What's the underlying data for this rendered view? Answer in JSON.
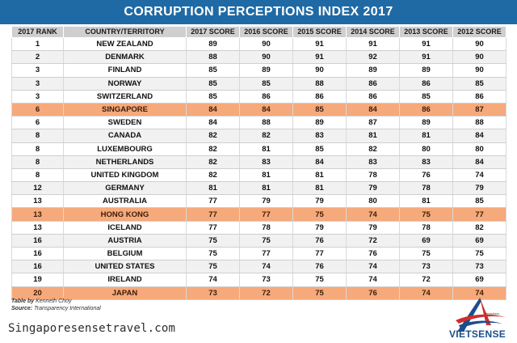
{
  "title": "CORRUPTION PERCEPTIONS INDEX 2017",
  "footer": {
    "table_by_label": "Table by",
    "table_by": "Kenneth Choy",
    "source_label": "Source:",
    "source": "Transparency International"
  },
  "site_url": "Singaporesensetravel.com",
  "logo": {
    "brand": "VIETSENSE",
    "sublabel": "NewsAsia",
    "icon": "stylized-a-logo-icon"
  },
  "colors": {
    "banner": "#1f6aa5",
    "highlight": "#f6a97a",
    "header": "#cfcfcf"
  },
  "chart_data": {
    "type": "table",
    "columns": [
      "2017 RANK",
      "COUNTRY/TERRITORY",
      "2017 SCORE",
      "2016 SCORE",
      "2015 SCORE",
      "2014 SCORE",
      "2013 SCORE",
      "2012 SCORE"
    ],
    "highlighted_rows": [
      "SINGAPORE",
      "HONG KONG",
      "JAPAN"
    ],
    "rows": [
      [
        "1",
        "NEW ZEALAND",
        "89",
        "90",
        "91",
        "91",
        "91",
        "90"
      ],
      [
        "2",
        "DENMARK",
        "88",
        "90",
        "91",
        "92",
        "91",
        "90"
      ],
      [
        "3",
        "FINLAND",
        "85",
        "89",
        "90",
        "89",
        "89",
        "90"
      ],
      [
        "3",
        "NORWAY",
        "85",
        "85",
        "88",
        "86",
        "86",
        "85"
      ],
      [
        "3",
        "SWITZERLAND",
        "85",
        "86",
        "86",
        "86",
        "85",
        "86"
      ],
      [
        "6",
        "SINGAPORE",
        "84",
        "84",
        "85",
        "84",
        "86",
        "87"
      ],
      [
        "6",
        "SWEDEN",
        "84",
        "88",
        "89",
        "87",
        "89",
        "88"
      ],
      [
        "8",
        "CANADA",
        "82",
        "82",
        "83",
        "81",
        "81",
        "84"
      ],
      [
        "8",
        "LUXEMBOURG",
        "82",
        "81",
        "85",
        "82",
        "80",
        "80"
      ],
      [
        "8",
        "NETHERLANDS",
        "82",
        "83",
        "84",
        "83",
        "83",
        "84"
      ],
      [
        "8",
        "UNITED KINGDOM",
        "82",
        "81",
        "81",
        "78",
        "76",
        "74"
      ],
      [
        "12",
        "GERMANY",
        "81",
        "81",
        "81",
        "79",
        "78",
        "79"
      ],
      [
        "13",
        "AUSTRALIA",
        "77",
        "79",
        "79",
        "80",
        "81",
        "85"
      ],
      [
        "13",
        "HONG KONG",
        "77",
        "77",
        "75",
        "74",
        "75",
        "77"
      ],
      [
        "13",
        "ICELAND",
        "77",
        "78",
        "79",
        "79",
        "78",
        "82"
      ],
      [
        "16",
        "AUSTRIA",
        "75",
        "75",
        "76",
        "72",
        "69",
        "69"
      ],
      [
        "16",
        "BELGIUM",
        "75",
        "77",
        "77",
        "76",
        "75",
        "75"
      ],
      [
        "16",
        "UNITED STATES",
        "75",
        "74",
        "76",
        "74",
        "73",
        "73"
      ],
      [
        "19",
        "IRELAND",
        "74",
        "73",
        "75",
        "74",
        "72",
        "69"
      ],
      [
        "20",
        "JAPAN",
        "73",
        "72",
        "75",
        "76",
        "74",
        "74"
      ]
    ]
  }
}
